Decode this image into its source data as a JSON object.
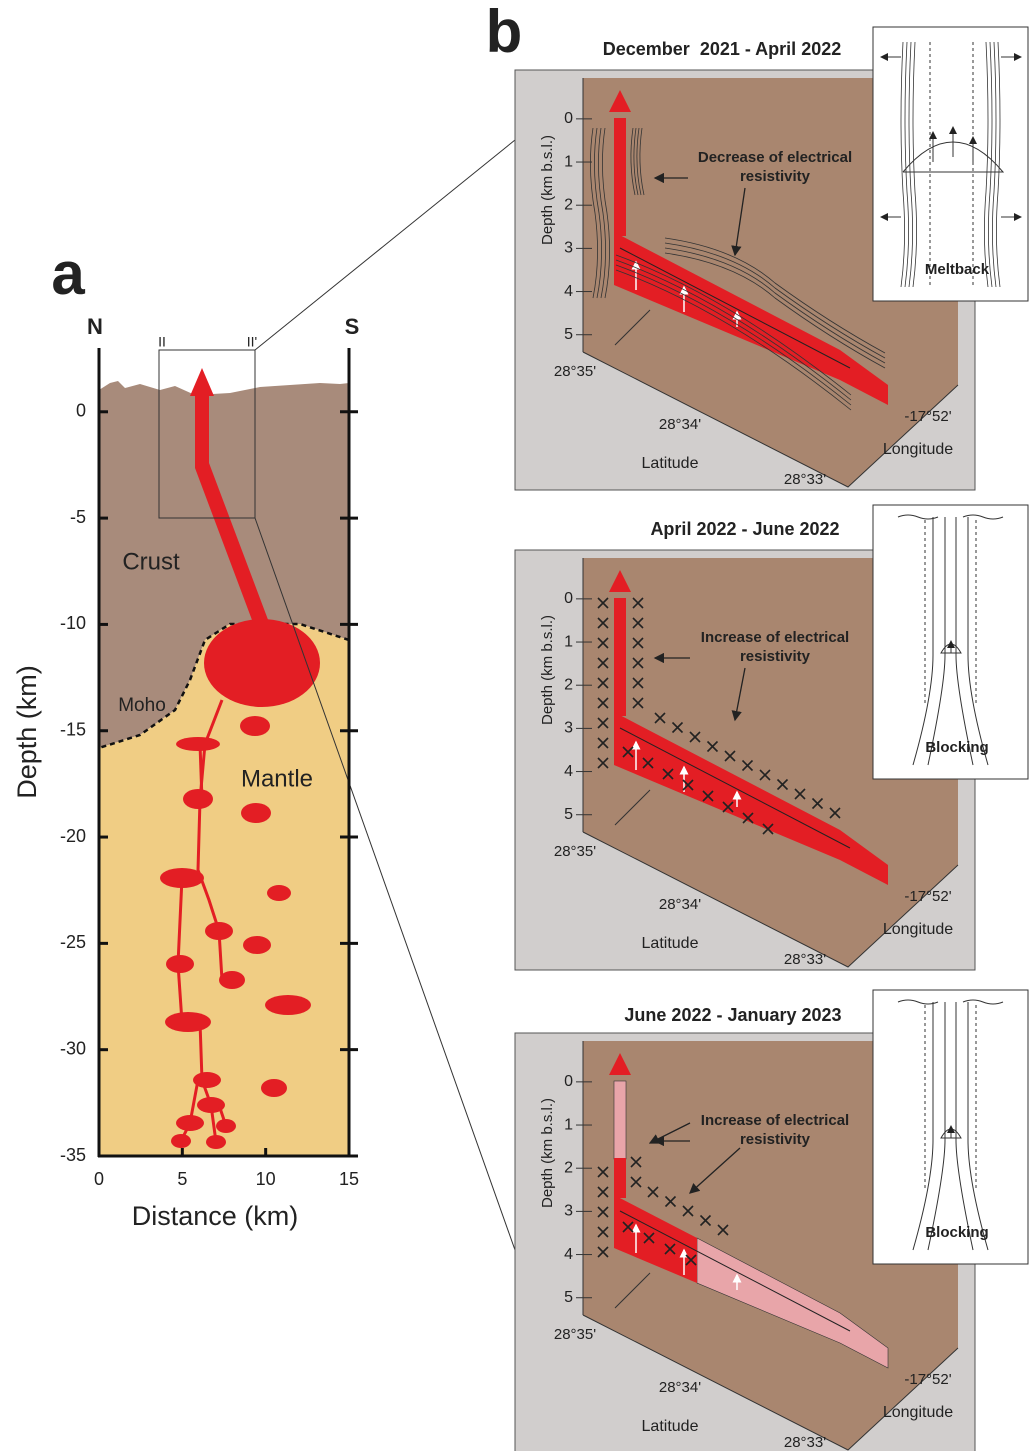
{
  "panel_a": {
    "label": "a",
    "north": "N",
    "south": "S",
    "section_start": "II",
    "section_end": "II'",
    "y_label": "Depth (km)",
    "x_label": "Distance (km)",
    "ylim": [
      -35,
      3
    ],
    "xlim": [
      0,
      15
    ],
    "yticks": [
      0,
      -5,
      -10,
      -15,
      -20,
      -25,
      -30,
      -35
    ],
    "xticks": [
      0,
      5,
      10,
      15
    ],
    "crust": "Crust",
    "mantle": "Mantle",
    "moho": "Moho"
  },
  "panel_b": {
    "label": "b",
    "panels": [
      {
        "title": "December  2021 - April 2022",
        "depth_label": "Depth (km b.s.l.)",
        "depth_lim": [
          -0.9,
          5.4
        ],
        "depth_ticks": [
          0,
          1,
          2,
          3,
          4,
          5
        ],
        "latitude_ticks": [
          "28°35'",
          "28°34'",
          "28°33'"
        ],
        "latitude_label": "Latitude",
        "longitude_tick": "-17°52'",
        "longitude_label": "Longitude",
        "annotation": [
          "Decrease of electrical",
          "resistivity"
        ],
        "inset_label": "Meltback"
      },
      {
        "title": "April 2022 - June 2022",
        "depth_label": "Depth (km b.s.l.)",
        "depth_lim": [
          -0.9,
          5.4
        ],
        "depth_ticks": [
          0,
          1,
          2,
          3,
          4,
          5
        ],
        "latitude_ticks": [
          "28°35'",
          "28°34'",
          "28°33'"
        ],
        "latitude_label": "Latitude",
        "longitude_tick": "-17°52'",
        "longitude_label": "Longitude",
        "annotation": [
          "Increase of electrical",
          "resistivity"
        ],
        "inset_label": "Blocking"
      },
      {
        "title": "June 2022 - January 2023",
        "depth_label": "Depth (km b.s.l.)",
        "depth_lim": [
          -0.9,
          5.4
        ],
        "depth_ticks": [
          0,
          1,
          2,
          3,
          4,
          5
        ],
        "latitude_ticks": [
          "28°35'",
          "28°34'",
          "28°33'"
        ],
        "latitude_label": "Latitude",
        "longitude_tick": "-17°52'",
        "longitude_label": "Longitude",
        "annotation": [
          "Increase of electrical",
          "resistivity"
        ],
        "inset_label": "Blocking"
      }
    ]
  }
}
